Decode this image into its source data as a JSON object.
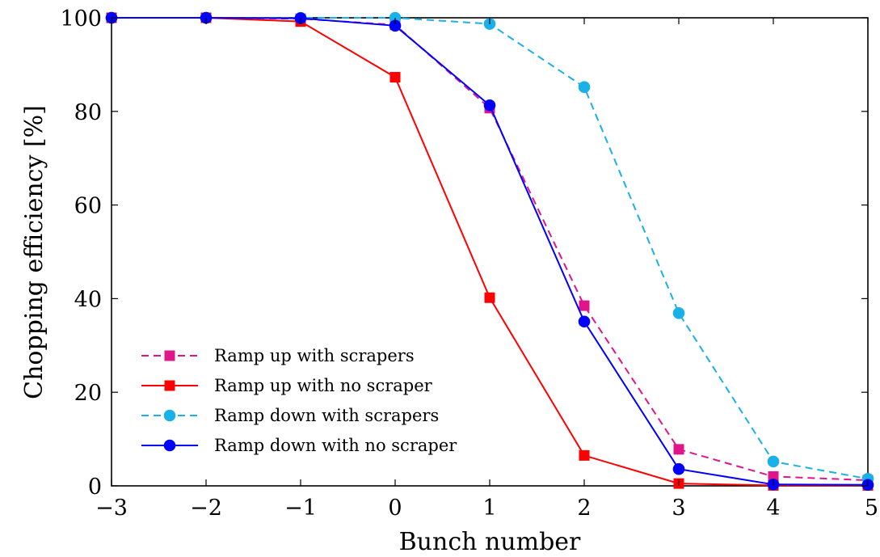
{
  "chart_data": {
    "type": "line",
    "xlabel": "Bunch number",
    "ylabel": "Chopping efficiency [%]",
    "xlim": [
      -3,
      5
    ],
    "ylim": [
      0,
      100
    ],
    "x_ticks": [
      -3,
      -2,
      -1,
      0,
      1,
      2,
      3,
      4,
      5
    ],
    "x_tick_labels": [
      "−3",
      "−2",
      "−1",
      "0",
      "1",
      "2",
      "3",
      "4",
      "5"
    ],
    "y_ticks": [
      0,
      20,
      40,
      60,
      80,
      100
    ],
    "y_tick_labels": [
      "0",
      "20",
      "40",
      "60",
      "80",
      "100"
    ],
    "grid": false,
    "legend_position": "bottom-left",
    "x": [
      -3,
      -2,
      -1,
      0,
      1,
      2,
      3,
      4,
      5
    ],
    "series": [
      {
        "name": "Ramp up with scrapers",
        "values": [
          100,
          100,
          99.8,
          98.5,
          80.7,
          38.5,
          7.8,
          2.0,
          1.2
        ],
        "color": "#e0158a",
        "marker": "square",
        "dash": true
      },
      {
        "name": "Ramp up with no scraper",
        "values": [
          100,
          100,
          99.2,
          87.3,
          40.2,
          6.5,
          0.5,
          0.1,
          0.1
        ],
        "color": "#ff0000",
        "marker": "square",
        "dash": false
      },
      {
        "name": "Ramp down with scrapers",
        "values": [
          100,
          100,
          100,
          100,
          98.7,
          85.2,
          36.9,
          5.2,
          1.5
        ],
        "color": "#1ab0e8",
        "marker": "circle",
        "dash": true
      },
      {
        "name": "Ramp down with no scraper",
        "values": [
          100,
          100,
          99.9,
          98.3,
          81.3,
          35.1,
          3.6,
          0.3,
          0.2
        ],
        "color": "#0000ff",
        "marker": "circle",
        "dash": false
      }
    ]
  }
}
